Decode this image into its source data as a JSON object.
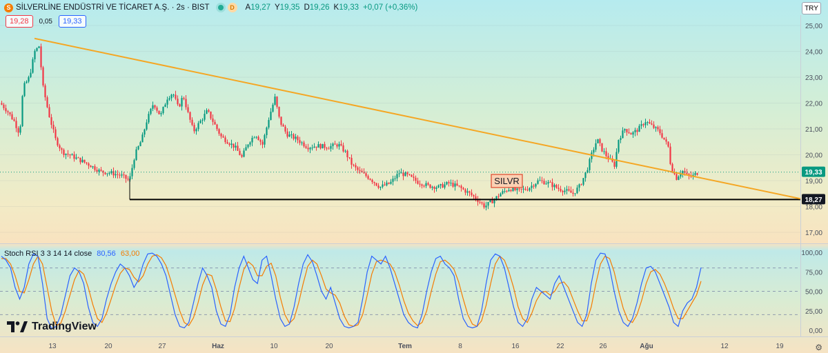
{
  "header": {
    "symbol_title": "SİLVERLİNE ENDÜSTRİ VE TİCARET A.Ş. · 2s · BIST",
    "symbol_icon_letter": "S",
    "delayed_badge": "D",
    "ohlc": [
      {
        "label": "A",
        "value": "19,27"
      },
      {
        "label": "Y",
        "value": "19,35"
      },
      {
        "label": "D",
        "value": "19,26"
      },
      {
        "label": "K",
        "value": "19,33"
      }
    ],
    "change": "+0,07 (+0,36%)",
    "bid": "19,28",
    "spread": "0,05",
    "ask": "19,33",
    "currency": "TRY"
  },
  "stoch": {
    "label": "Stoch RSI 3 3 14 14 close",
    "k_value": "80,56",
    "d_value": "63,00"
  },
  "brand": "TradingView",
  "colors": {
    "up": "#089981",
    "down": "#f23645",
    "trendline": "#f5a623",
    "support": "#000000",
    "k_line": "#2962ff",
    "d_line": "#f57c00"
  },
  "chart_data": [
    {
      "type": "candlestick",
      "title": "SİLVERLİNE ENDÜSTRİ VE TİCARET A.Ş. · 2s · BIST",
      "x_tick_labels": [
        "13",
        "20",
        "27",
        "Haz",
        "10",
        "20",
        "Tem",
        "8",
        "16",
        "22",
        "26",
        "Ağu",
        "12",
        "19"
      ],
      "y_tick_labels": [
        "25,00",
        "24,00",
        "23,00",
        "22,00",
        "21,00",
        "20,00",
        "19,00",
        "18,00",
        "17,00"
      ],
      "ylim": [
        16.6,
        25.4
      ],
      "last_price": 19.33,
      "last_price_label": "19,33",
      "support_level": 18.27,
      "support_label": "18,27",
      "annotation": "SILVR",
      "price_path": [
        [
          0,
          22.0
        ],
        [
          10,
          21.7
        ],
        [
          20,
          21.3
        ],
        [
          28,
          20.8
        ],
        [
          33,
          22.6
        ],
        [
          42,
          23.0
        ],
        [
          50,
          24.0
        ],
        [
          56,
          24.2
        ],
        [
          62,
          22.6
        ],
        [
          70,
          21.6
        ],
        [
          80,
          20.6
        ],
        [
          90,
          20.1
        ],
        [
          100,
          20.0
        ],
        [
          115,
          19.8
        ],
        [
          130,
          19.6
        ],
        [
          145,
          19.35
        ],
        [
          160,
          19.3
        ],
        [
          175,
          19.2
        ],
        [
          187,
          19.0
        ],
        [
          195,
          20.0
        ],
        [
          205,
          20.6
        ],
        [
          212,
          21.3
        ],
        [
          222,
          22.0
        ],
        [
          232,
          21.5
        ],
        [
          242,
          22.2
        ],
        [
          250,
          22.4
        ],
        [
          258,
          21.8
        ],
        [
          265,
          22.3
        ],
        [
          272,
          21.6
        ],
        [
          280,
          20.9
        ],
        [
          290,
          21.3
        ],
        [
          300,
          21.7
        ],
        [
          310,
          21.2
        ],
        [
          320,
          20.7
        ],
        [
          330,
          20.5
        ],
        [
          340,
          20.3
        ],
        [
          350,
          19.9
        ],
        [
          360,
          20.5
        ],
        [
          370,
          20.8
        ],
        [
          380,
          20.4
        ],
        [
          390,
          21.5
        ],
        [
          398,
          22.2
        ],
        [
          405,
          21.3
        ],
        [
          415,
          20.8
        ],
        [
          430,
          20.6
        ],
        [
          445,
          20.3
        ],
        [
          460,
          20.35
        ],
        [
          475,
          20.3
        ],
        [
          490,
          20.4
        ],
        [
          500,
          20.1
        ],
        [
          510,
          19.6
        ],
        [
          520,
          19.35
        ],
        [
          535,
          19.1
        ],
        [
          550,
          18.75
        ],
        [
          565,
          18.9
        ],
        [
          578,
          19.3
        ],
        [
          590,
          19.2
        ],
        [
          605,
          18.95
        ],
        [
          620,
          18.8
        ],
        [
          635,
          18.75
        ],
        [
          650,
          18.9
        ],
        [
          665,
          18.75
        ],
        [
          680,
          18.5
        ],
        [
          690,
          18.3
        ],
        [
          702,
          18.0
        ],
        [
          715,
          18.25
        ],
        [
          725,
          18.5
        ],
        [
          738,
          18.7
        ],
        [
          750,
          18.6
        ],
        [
          765,
          18.7
        ],
        [
          780,
          19.0
        ],
        [
          795,
          18.9
        ],
        [
          808,
          18.7
        ],
        [
          820,
          18.6
        ],
        [
          830,
          18.5
        ],
        [
          840,
          18.8
        ],
        [
          850,
          19.4
        ],
        [
          858,
          20.1
        ],
        [
          865,
          20.6
        ],
        [
          872,
          20.2
        ],
        [
          880,
          19.9
        ],
        [
          890,
          19.6
        ],
        [
          896,
          20.6
        ],
        [
          905,
          21.0
        ],
        [
          915,
          20.8
        ],
        [
          925,
          21.0
        ],
        [
          935,
          21.3
        ],
        [
          945,
          21.1
        ],
        [
          955,
          20.9
        ],
        [
          962,
          20.6
        ],
        [
          968,
          20.3
        ],
        [
          972,
          19.5
        ],
        [
          980,
          19.1
        ],
        [
          988,
          19.4
        ],
        [
          995,
          19.2
        ],
        [
          1002,
          19.15
        ],
        [
          1010,
          19.3
        ]
      ],
      "trendline": {
        "from": [
          "12 May",
          24.5
        ],
        "to": [
          "end",
          18.3
        ]
      }
    },
    {
      "type": "line",
      "title": "Stoch RSI 3 3 14 14 close",
      "y_tick_labels": [
        "100,00",
        "75,00",
        "50,00",
        "25,00",
        "0,00"
      ],
      "ylim": [
        0,
        100
      ],
      "levels": [
        80,
        50,
        20
      ],
      "series": [
        {
          "name": "K",
          "last": 80.56,
          "values": [
            95,
            90,
            80,
            55,
            40,
            55,
            85,
            98,
            95,
            60,
            15,
            2,
            5,
            20,
            45,
            70,
            80,
            75,
            60,
            30,
            10,
            5,
            15,
            40,
            60,
            75,
            85,
            80,
            70,
            55,
            65,
            85,
            98,
            99,
            95,
            85,
            70,
            45,
            20,
            5,
            3,
            10,
            35,
            60,
            80,
            70,
            55,
            25,
            8,
            5,
            20,
            55,
            80,
            95,
            80,
            65,
            60,
            90,
            95,
            70,
            40,
            15,
            5,
            8,
            30,
            60,
            85,
            97,
            88,
            70,
            50,
            40,
            55,
            35,
            15,
            5,
            3,
            5,
            10,
            40,
            75,
            95,
            90,
            85,
            95,
            80,
            60,
            40,
            20,
            10,
            5,
            3,
            20,
            50,
            75,
            92,
            95,
            85,
            80,
            70,
            40,
            15,
            5,
            3,
            5,
            25,
            60,
            90,
            98,
            95,
            80,
            55,
            30,
            10,
            5,
            15,
            40,
            55,
            50,
            45,
            40,
            60,
            70,
            55,
            40,
            25,
            10,
            5,
            20,
            60,
            90,
            99,
            98,
            80,
            50,
            25,
            10,
            5,
            15,
            35,
            60,
            80,
            82,
            75,
            60,
            45,
            30,
            10,
            5,
            25,
            35,
            40,
            55,
            80.56
          ]
        },
        {
          "name": "D",
          "last": 63.0,
          "values": [
            92,
            92,
            85,
            70,
            50,
            48,
            65,
            85,
            95,
            85,
            55,
            25,
            6,
            9,
            25,
            45,
            65,
            77,
            72,
            55,
            33,
            15,
            10,
            22,
            40,
            58,
            73,
            80,
            78,
            68,
            62,
            70,
            85,
            95,
            97,
            93,
            83,
            65,
            45,
            25,
            10,
            6,
            16,
            35,
            58,
            72,
            70,
            52,
            30,
            12,
            11,
            28,
            55,
            78,
            88,
            83,
            70,
            70,
            82,
            86,
            70,
            42,
            20,
            9,
            15,
            35,
            60,
            82,
            90,
            85,
            70,
            53,
            48,
            45,
            35,
            18,
            7,
            5,
            7,
            20,
            45,
            72,
            88,
            90,
            88,
            85,
            75,
            58,
            38,
            22,
            12,
            6,
            10,
            25,
            50,
            72,
            88,
            90,
            85,
            78,
            62,
            40,
            20,
            8,
            5,
            12,
            32,
            60,
            85,
            95,
            90,
            75,
            55,
            30,
            15,
            10,
            22,
            38,
            48,
            50,
            45,
            50,
            60,
            62,
            55,
            40,
            25,
            12,
            12,
            30,
            60,
            85,
            95,
            92,
            75,
            50,
            28,
            13,
            10,
            20,
            38,
            60,
            75,
            78,
            72,
            60,
            45,
            28,
            15,
            15,
            25,
            35,
            45,
            63.0
          ]
        }
      ]
    }
  ]
}
